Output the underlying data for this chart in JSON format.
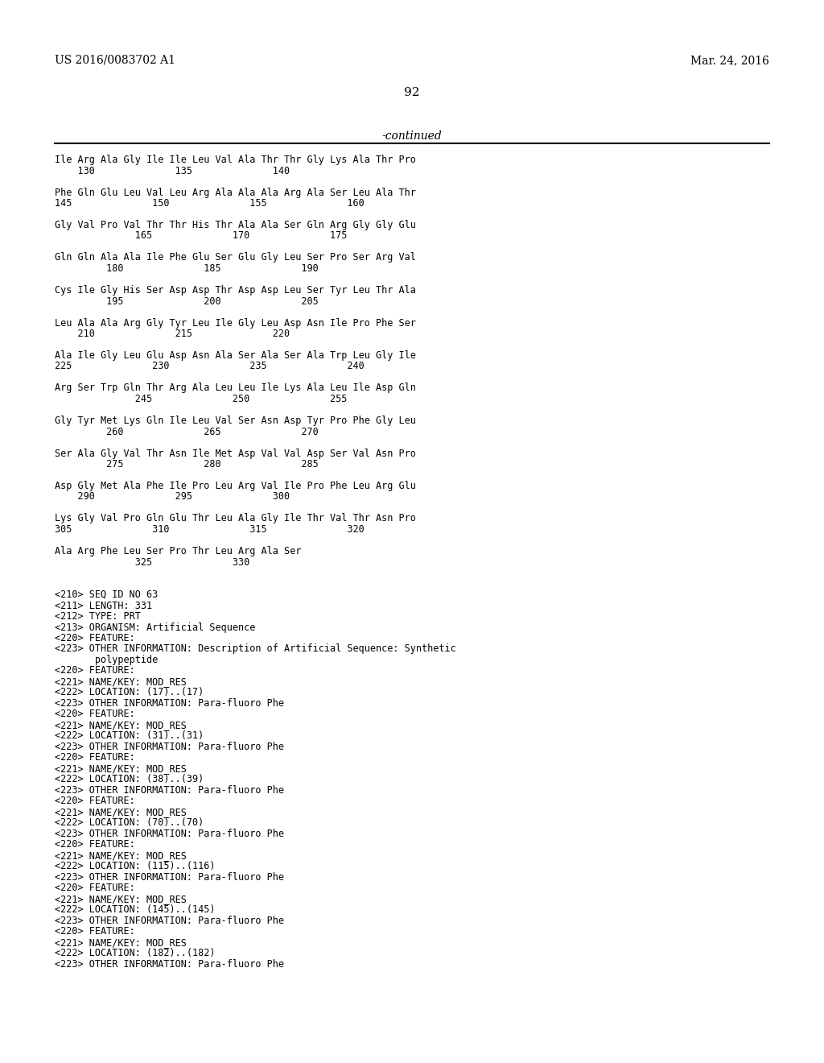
{
  "bg_color": "#ffffff",
  "left_header": "US 2016/0083702 A1",
  "right_header": "Mar. 24, 2016",
  "page_number": "92",
  "continued_text": "-continued",
  "mono_font_size": 8.5,
  "header_font_size": 10,
  "page_num_font_size": 11,
  "content_lines": [
    "Ile Arg Ala Gly Ile Ile Leu Val Ala Thr Thr Gly Lys Ala Thr Pro",
    "    130              135              140",
    "",
    "Phe Gln Glu Leu Val Leu Arg Ala Ala Ala Arg Ala Ser Leu Ala Thr",
    "145              150              155              160",
    "",
    "Gly Val Pro Val Thr Thr His Thr Ala Ala Ser Gln Arg Gly Gly Glu",
    "              165              170              175",
    "",
    "Gln Gln Ala Ala Ile Phe Glu Ser Glu Gly Leu Ser Pro Ser Arg Val",
    "         180              185              190",
    "",
    "Cys Ile Gly His Ser Asp Asp Thr Asp Asp Leu Ser Tyr Leu Thr Ala",
    "         195              200              205",
    "",
    "Leu Ala Ala Arg Gly Tyr Leu Ile Gly Leu Asp Asn Ile Pro Phe Ser",
    "    210              215              220",
    "",
    "Ala Ile Gly Leu Glu Asp Asn Ala Ser Ala Ser Ala Trp Leu Gly Ile",
    "225              230              235              240",
    "",
    "Arg Ser Trp Gln Thr Arg Ala Leu Leu Ile Lys Ala Leu Ile Asp Gln",
    "              245              250              255",
    "",
    "Gly Tyr Met Lys Gln Ile Leu Val Ser Asn Asp Tyr Pro Phe Gly Leu",
    "         260              265              270",
    "",
    "Ser Ala Gly Val Thr Asn Ile Met Asp Val Val Asp Ser Val Asn Pro",
    "         275              280              285",
    "",
    "Asp Gly Met Ala Phe Ile Pro Leu Arg Val Ile Pro Phe Leu Arg Glu",
    "    290              295              300",
    "",
    "Lys Gly Val Pro Gln Glu Thr Leu Ala Gly Ile Thr Val Thr Asn Pro",
    "305              310              315              320",
    "",
    "Ala Arg Phe Leu Ser Pro Thr Leu Arg Ala Ser",
    "              325              330",
    "",
    "",
    "<210> SEQ ID NO 63",
    "<211> LENGTH: 331",
    "<212> TYPE: PRT",
    "<213> ORGANISM: Artificial Sequence",
    "<220> FEATURE:",
    "<223> OTHER INFORMATION: Description of Artificial Sequence: Synthetic",
    "       polypeptide",
    "<220> FEATURE:",
    "<221> NAME/KEY: MOD_RES",
    "<222> LOCATION: (17)..(17)",
    "<223> OTHER INFORMATION: Para-fluoro Phe",
    "<220> FEATURE:",
    "<221> NAME/KEY: MOD_RES",
    "<222> LOCATION: (31)..(31)",
    "<223> OTHER INFORMATION: Para-fluoro Phe",
    "<220> FEATURE:",
    "<221> NAME/KEY: MOD_RES",
    "<222> LOCATION: (38)..(39)",
    "<223> OTHER INFORMATION: Para-fluoro Phe",
    "<220> FEATURE:",
    "<221> NAME/KEY: MOD_RES",
    "<222> LOCATION: (70)..(70)",
    "<223> OTHER INFORMATION: Para-fluoro Phe",
    "<220> FEATURE:",
    "<221> NAME/KEY: MOD_RES",
    "<222> LOCATION: (115)..(116)",
    "<223> OTHER INFORMATION: Para-fluoro Phe",
    "<220> FEATURE:",
    "<221> NAME/KEY: MOD_RES",
    "<222> LOCATION: (145)..(145)",
    "<223> OTHER INFORMATION: Para-fluoro Phe",
    "<220> FEATURE:",
    "<221> NAME/KEY: MOD_RES",
    "<222> LOCATION: (182)..(182)",
    "<223> OTHER INFORMATION: Para-fluoro Phe"
  ]
}
